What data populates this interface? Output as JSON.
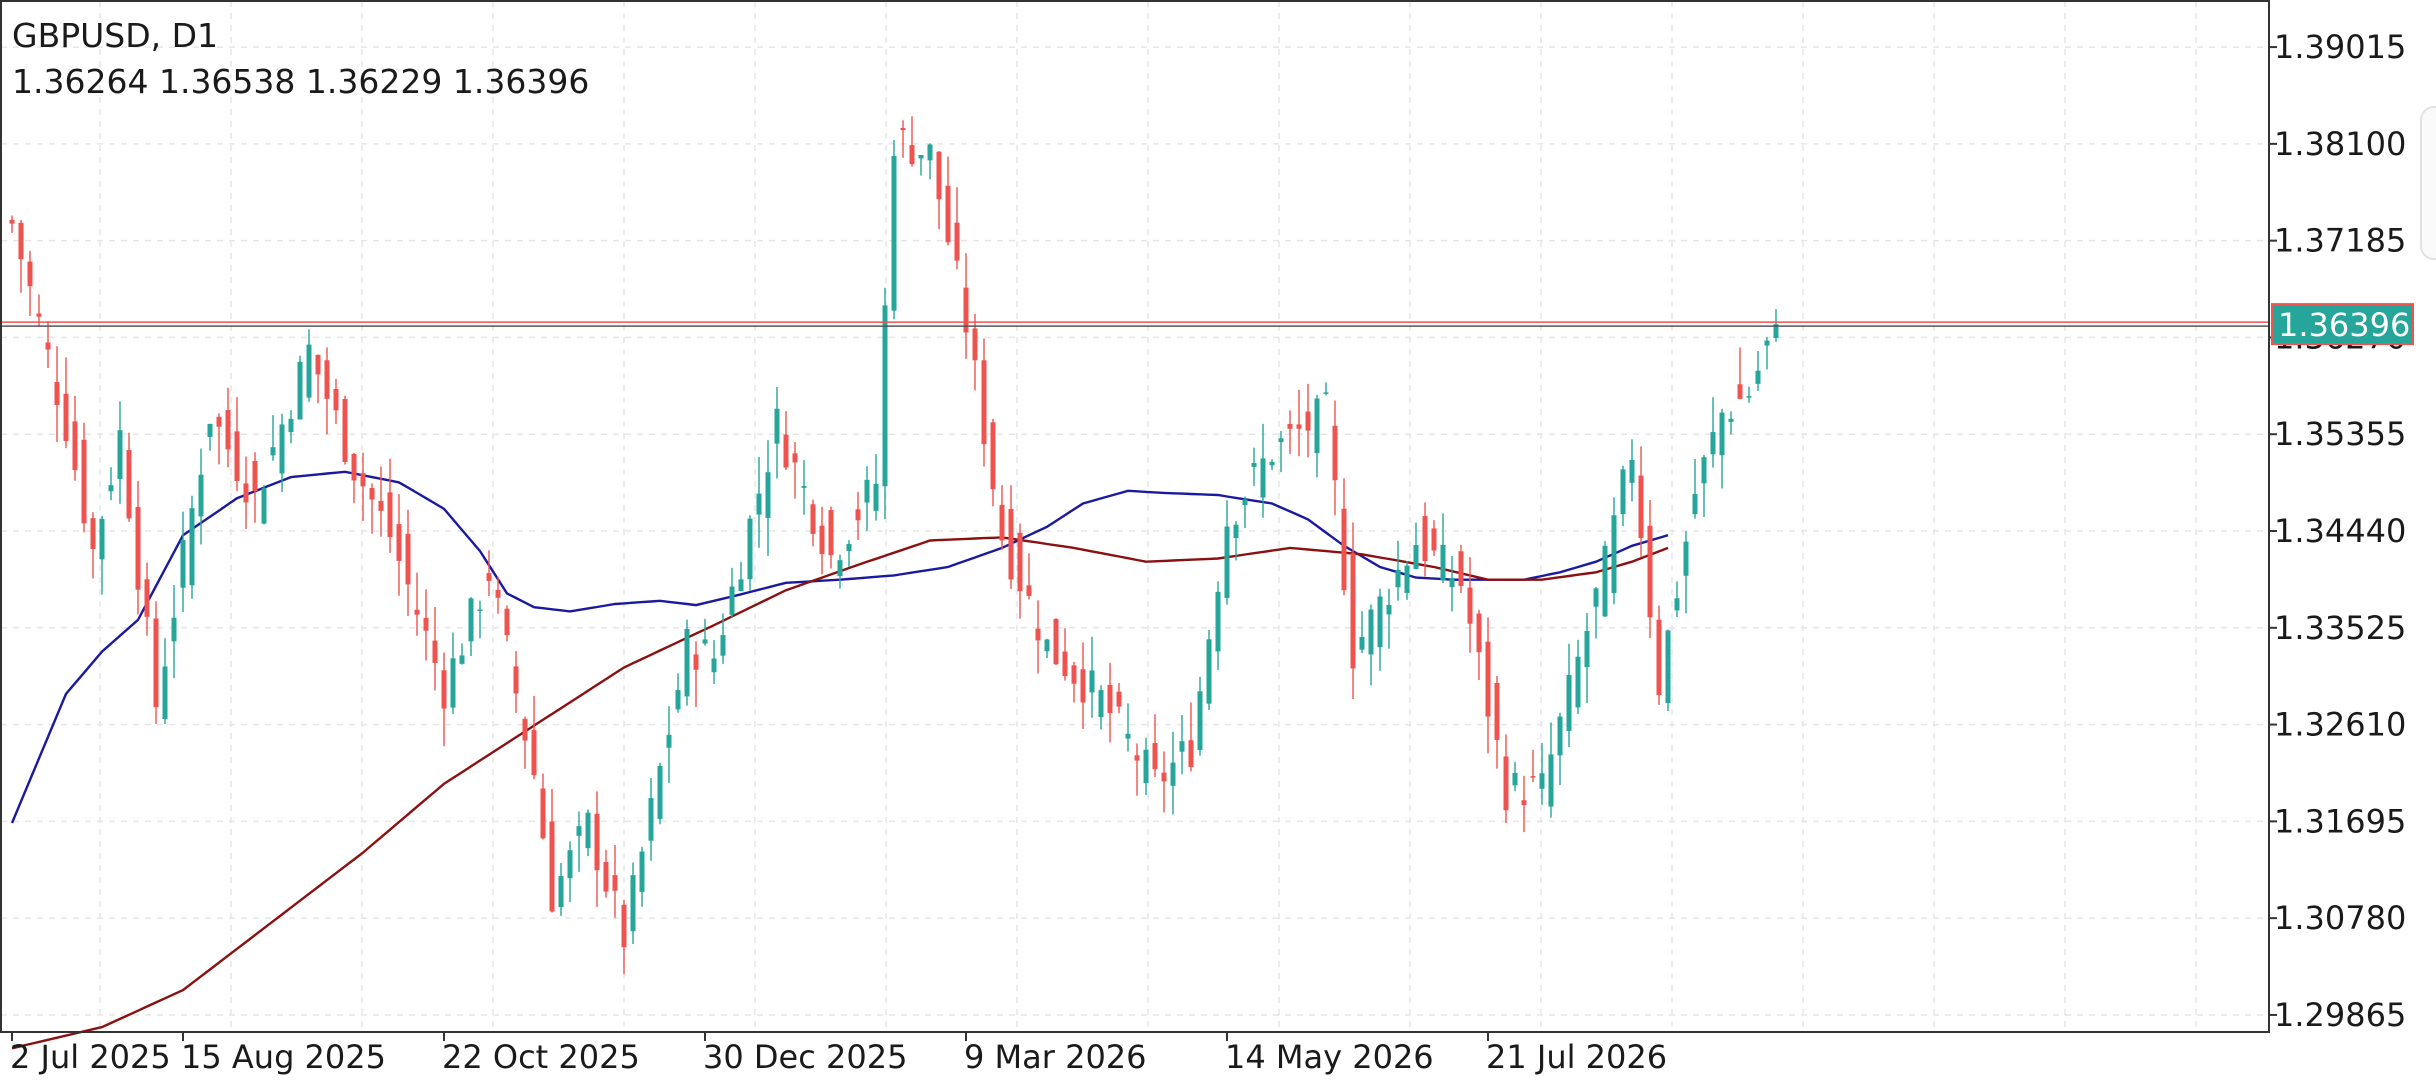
{
  "header": {
    "symbol": "GBPUSD, D1",
    "ohlc": "1.36264 1.36538 1.36229 1.36396"
  },
  "price_axis": {
    "labels": [
      "1.39015",
      "1.38100",
      "1.37185",
      "1.36270",
      "1.35355",
      "1.34440",
      "1.33525",
      "1.32610",
      "1.31695",
      "1.30780",
      "1.29865"
    ]
  },
  "time_axis": {
    "labels": [
      "2 Jul 2025",
      "15 Aug 2025",
      "22 Oct 2025",
      "30 Dec 2025",
      "9 Mar 2026",
      "14 May 2026",
      "21 Jul 2026"
    ]
  },
  "current_price": {
    "label": "1.36396",
    "value": 1.36396,
    "label_bg": "#26a69a"
  },
  "colors": {
    "bull": "#26a69a",
    "bear": "#ef5350",
    "ma_fast": "#1a1aa0",
    "ma_slow": "#8b1010",
    "grid": "#e6e6e6",
    "price_line_red": "#ef5350",
    "price_line_dark": "#555555"
  },
  "chart_data": {
    "type": "candlestick",
    "timeframe": "D1",
    "ylim": [
      1.2925,
      1.3946
    ],
    "y_ticks": [
      1.39015,
      1.381,
      1.37185,
      1.3627,
      1.35355,
      1.3444,
      1.33525,
      1.3261,
      1.31695,
      1.3078,
      1.29865
    ],
    "x_ticks": [
      "2 Jul 2025",
      "15 Aug 2025",
      "22 Oct 2025",
      "30 Dec 2025",
      "9 Mar 2026",
      "14 May 2026",
      "21 Jul 2026"
    ],
    "x_tick_bar_index": [
      0,
      19,
      48,
      77,
      106,
      135,
      164
    ],
    "bar_count": 197,
    "last_bar": {
      "open": 1.36264,
      "high": 1.36538,
      "low": 1.36229,
      "close": 1.36396
    },
    "close_anchors": [
      [
        0,
        1.3735
      ],
      [
        6,
        1.3545
      ],
      [
        9,
        1.3425
      ],
      [
        12,
        1.3535
      ],
      [
        16,
        1.328
      ],
      [
        22,
        1.3555
      ],
      [
        27,
        1.3475
      ],
      [
        33,
        1.3615
      ],
      [
        38,
        1.3505
      ],
      [
        42,
        1.344
      ],
      [
        48,
        1.3295
      ],
      [
        53,
        1.3405
      ],
      [
        58,
        1.3215
      ],
      [
        60,
        1.31
      ],
      [
        64,
        1.3165
      ],
      [
        68,
        1.306
      ],
      [
        75,
        1.3335
      ],
      [
        78,
        1.3325
      ],
      [
        85,
        1.3545
      ],
      [
        91,
        1.342
      ],
      [
        96,
        1.349
      ],
      [
        98,
        1.3815
      ],
      [
        102,
        1.38
      ],
      [
        106,
        1.364
      ],
      [
        110,
        1.344
      ],
      [
        115,
        1.3335
      ],
      [
        121,
        1.3285
      ],
      [
        127,
        1.3205
      ],
      [
        131,
        1.324
      ],
      [
        135,
        1.3455
      ],
      [
        140,
        1.352
      ],
      [
        146,
        1.3555
      ],
      [
        149,
        1.333
      ],
      [
        156,
        1.3435
      ],
      [
        161,
        1.3395
      ],
      [
        166,
        1.32
      ],
      [
        170,
        1.32
      ],
      [
        177,
        1.341
      ],
      [
        180,
        1.352
      ],
      [
        183,
        1.33
      ],
      [
        187,
        1.348
      ],
      [
        190,
        1.3555
      ],
      [
        193,
        1.3575
      ],
      [
        196,
        1.36396
      ]
    ],
    "series": [
      {
        "name": "MA fast",
        "color": "#1a1aa0",
        "anchors": [
          [
            0,
            1.3168
          ],
          [
            6,
            1.329
          ],
          [
            10,
            1.333
          ],
          [
            14,
            1.336
          ],
          [
            19,
            1.344
          ],
          [
            25,
            1.3475
          ],
          [
            31,
            1.3495
          ],
          [
            37,
            1.35
          ],
          [
            43,
            1.349
          ],
          [
            48,
            1.3465
          ],
          [
            52,
            1.3425
          ],
          [
            55,
            1.3385
          ],
          [
            58,
            1.3372
          ],
          [
            62,
            1.3368
          ],
          [
            67,
            1.3375
          ],
          [
            72,
            1.3378
          ],
          [
            76,
            1.3374
          ],
          [
            80,
            1.3382
          ],
          [
            86,
            1.3395
          ],
          [
            92,
            1.3398
          ],
          [
            98,
            1.3402
          ],
          [
            104,
            1.341
          ],
          [
            110,
            1.3428
          ],
          [
            115,
            1.3448
          ],
          [
            119,
            1.347
          ],
          [
            124,
            1.3482
          ],
          [
            128,
            1.348
          ],
          [
            134,
            1.3478
          ],
          [
            140,
            1.347
          ],
          [
            144,
            1.3455
          ],
          [
            148,
            1.343
          ],
          [
            152,
            1.341
          ],
          [
            156,
            1.34
          ],
          [
            160,
            1.3398
          ],
          [
            164,
            1.3398
          ],
          [
            168,
            1.3398
          ],
          [
            172,
            1.3405
          ],
          [
            176,
            1.3415
          ],
          [
            180,
            1.343
          ],
          [
            184,
            1.344
          ]
        ]
      },
      {
        "name": "MA slow",
        "color": "#8b1010",
        "anchors": [
          [
            0,
            1.2955
          ],
          [
            10,
            1.2975
          ],
          [
            19,
            1.301
          ],
          [
            29,
            1.3075
          ],
          [
            39,
            1.314
          ],
          [
            48,
            1.3205
          ],
          [
            58,
            1.326
          ],
          [
            68,
            1.3315
          ],
          [
            78,
            1.3355
          ],
          [
            86,
            1.3388
          ],
          [
            94,
            1.3412
          ],
          [
            102,
            1.3435
          ],
          [
            110,
            1.3438
          ],
          [
            118,
            1.3428
          ],
          [
            126,
            1.3415
          ],
          [
            134,
            1.3418
          ],
          [
            142,
            1.3428
          ],
          [
            150,
            1.3422
          ],
          [
            158,
            1.341
          ],
          [
            164,
            1.3398
          ],
          [
            170,
            1.3398
          ],
          [
            176,
            1.3405
          ],
          [
            180,
            1.3415
          ],
          [
            184,
            1.3428
          ]
        ]
      }
    ]
  }
}
